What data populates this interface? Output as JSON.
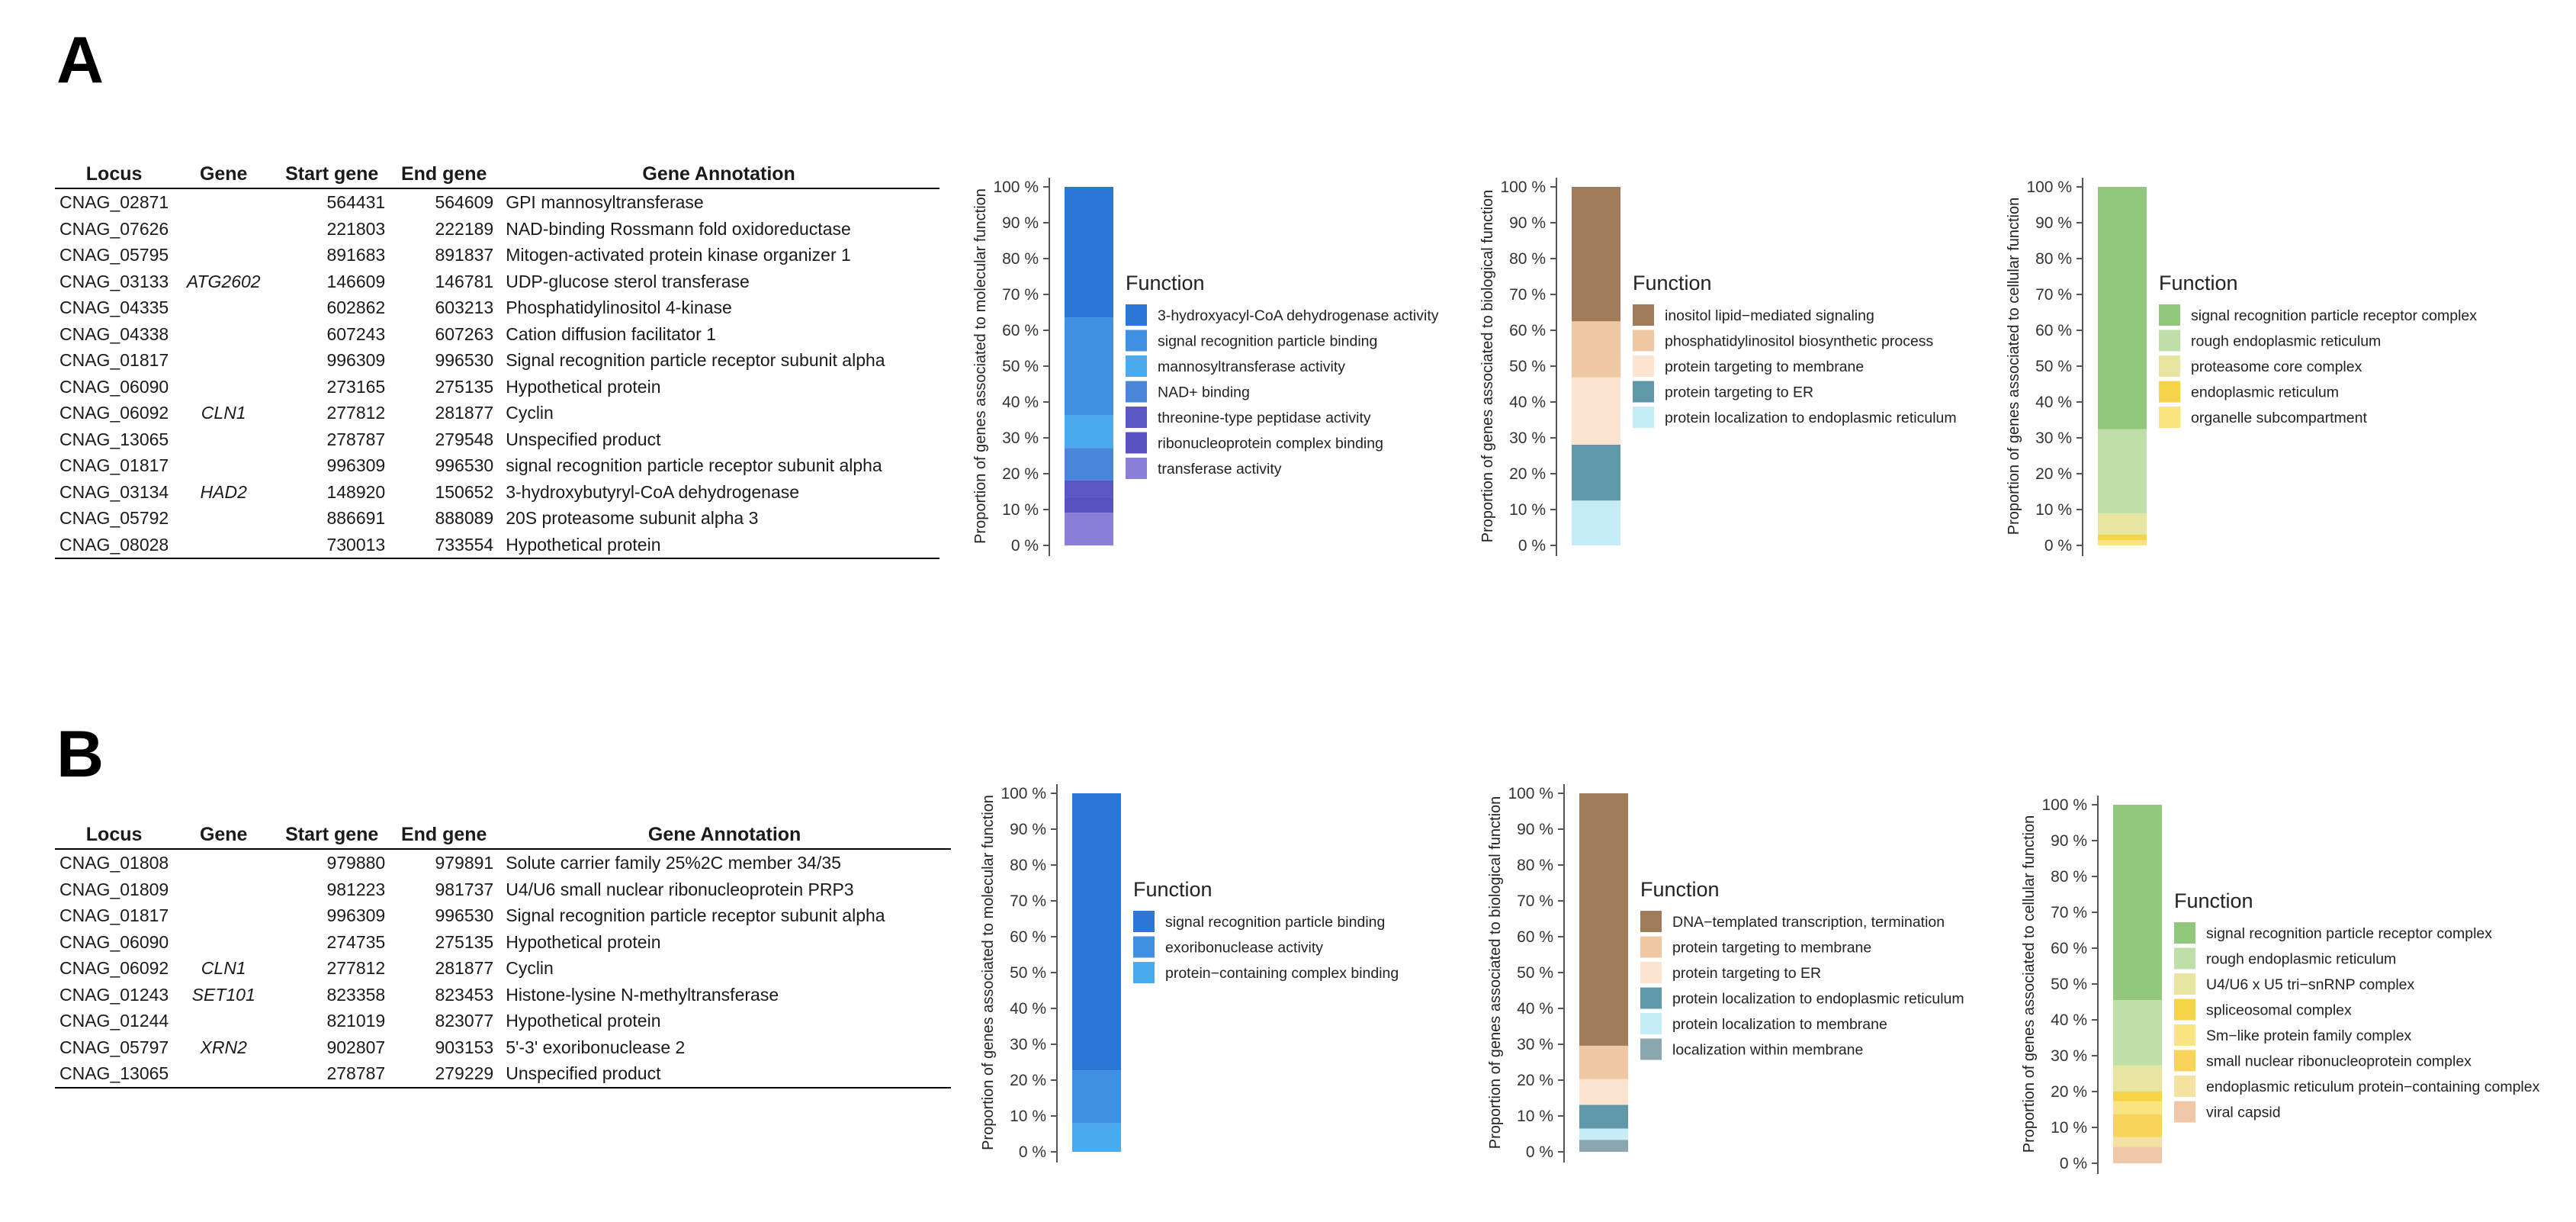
{
  "panels": [
    {
      "label": "A",
      "table": {
        "headers": [
          "Locus",
          "Gene",
          "Start gene",
          "End gene",
          "Gene Annotation"
        ],
        "rows": [
          [
            "CNAG_02871",
            "",
            "564431",
            "564609",
            "GPI mannosyltransferase"
          ],
          [
            "CNAG_07626",
            "",
            "221803",
            "222189",
            "NAD-binding Rossmann fold oxidoreductase"
          ],
          [
            "CNAG_05795",
            "",
            "891683",
            "891837",
            "Mitogen-activated protein kinase organizer 1"
          ],
          [
            "CNAG_03133",
            "ATG2602",
            "146609",
            "146781",
            "UDP-glucose sterol transferase"
          ],
          [
            "CNAG_04335",
            "",
            "602862",
            "603213",
            "Phosphatidylinositol 4-kinase"
          ],
          [
            "CNAG_04338",
            "",
            "607243",
            "607263",
            "Cation diffusion facilitator 1"
          ],
          [
            "CNAG_01817",
            "",
            "996309",
            "996530",
            "Signal recognition particle receptor subunit alpha"
          ],
          [
            "CNAG_06090",
            "",
            "273165",
            "275135",
            "Hypothetical protein"
          ],
          [
            "CNAG_06092",
            "CLN1",
            "277812",
            "281877",
            "Cyclin"
          ],
          [
            "CNAG_13065",
            "",
            "278787",
            "279548",
            "Unspecified product"
          ],
          [
            "CNAG_01817",
            "",
            "996309",
            "996530",
            "signal recognition particle receptor subunit alpha"
          ],
          [
            "CNAG_03134",
            "HAD2",
            "148920",
            "150652",
            "3-hydroxybutyryl-CoA dehydrogenase"
          ],
          [
            "CNAG_05792",
            "",
            "886691",
            "888089",
            "20S proteasome subunit alpha 3"
          ],
          [
            "CNAG_08028",
            "",
            "730013",
            "733554",
            "Hypothetical protein"
          ]
        ]
      }
    },
    {
      "label": "B",
      "table": {
        "headers": [
          "Locus",
          "Gene",
          "Start gene",
          "End gene",
          "Gene Annotation"
        ],
        "rows": [
          [
            "CNAG_01808",
            "",
            "979880",
            "979891",
            "Solute carrier family 25%2C member 34/35"
          ],
          [
            "CNAG_01809",
            "",
            "981223",
            "981737",
            "U4/U6 small nuclear ribonucleoprotein PRP3"
          ],
          [
            "CNAG_01817",
            "",
            "996309",
            "996530",
            "Signal recognition particle receptor subunit alpha"
          ],
          [
            "CNAG_06090",
            "",
            "274735",
            "275135",
            "Hypothetical protein"
          ],
          [
            "CNAG_06092",
            "CLN1",
            "277812",
            "281877",
            "Cyclin"
          ],
          [
            "CNAG_01243",
            "SET101",
            "823358",
            "823453",
            "Histone-lysine N-methyltransferase"
          ],
          [
            "CNAG_01244",
            "",
            "821019",
            "823077",
            "Hypothetical protein"
          ],
          [
            "CNAG_05797",
            "XRN2",
            "902807",
            "903153",
            "5'-3' exoribonuclease 2"
          ],
          [
            "CNAG_13065",
            "",
            "278787",
            "279229",
            "Unspecified product"
          ]
        ]
      }
    }
  ],
  "chart_data": [
    {
      "panel": "A",
      "type": "bar",
      "stacked": true,
      "ylabel": "Proportion of genes associated to molecular function",
      "yticks": [
        "0 %",
        "10 %",
        "20 %",
        "30 %",
        "40 %",
        "50 %",
        "60 %",
        "70 %",
        "80 %",
        "90 %",
        "100 %"
      ],
      "ylim": [
        0,
        100
      ],
      "legend_title": "Function",
      "series": [
        {
          "name": "3-hydroxyacyl-CoA dehydrogenase activity",
          "value": 36.4,
          "color": "#2a77d6"
        },
        {
          "name": "signal recognition particle binding",
          "value": 27.3,
          "color": "#3f8fe2"
        },
        {
          "name": "mannosyltransferase activity",
          "value": 9.1,
          "color": "#4ba9ee"
        },
        {
          "name": "NAD+ binding",
          "value": 9.1,
          "color": "#4a86da"
        },
        {
          "name": "threonine-type peptidase activity",
          "value": 4.5,
          "color": "#5a56c4"
        },
        {
          "name": "ribonucleoprotein complex binding",
          "value": 4.5,
          "color": "#5a52c2"
        },
        {
          "name": "transferase activity",
          "value": 9.1,
          "color": "#8a7fd8"
        }
      ]
    },
    {
      "panel": "A",
      "type": "bar",
      "stacked": true,
      "ylabel": "Proportion of genes associated to biological function",
      "yticks": [
        "0 %",
        "10 %",
        "20 %",
        "30 %",
        "40 %",
        "50 %",
        "60 %",
        "70 %",
        "80 %",
        "90 %",
        "100 %"
      ],
      "ylim": [
        0,
        100
      ],
      "legend_title": "Function",
      "series": [
        {
          "name": "inositol lipid−mediated signaling",
          "value": 37.5,
          "color": "#a07c5b"
        },
        {
          "name": "phosphatidylinositol biosynthetic process",
          "value": 15.6,
          "color": "#efc8a3"
        },
        {
          "name": "protein targeting to membrane",
          "value": 18.8,
          "color": "#fbe3cf"
        },
        {
          "name": "protein targeting to ER",
          "value": 15.6,
          "color": "#5f98a8"
        },
        {
          "name": "protein localization to endoplasmic reticulum",
          "value": 12.5,
          "color": "#c5ecf7"
        }
      ]
    },
    {
      "panel": "A",
      "type": "bar",
      "stacked": true,
      "ylabel": "Proportion of genes associated to cellular function",
      "yticks": [
        "0 %",
        "10 %",
        "20 %",
        "30 %",
        "40 %",
        "50 %",
        "60 %",
        "70 %",
        "80 %",
        "90 %",
        "100 %"
      ],
      "ylim": [
        0,
        100
      ],
      "legend_title": "Function",
      "series": [
        {
          "name": "signal recognition particle receptor complex",
          "value": 67.6,
          "color": "#92c87c"
        },
        {
          "name": "rough endoplasmic reticulum",
          "value": 23.5,
          "color": "#bfdfa8"
        },
        {
          "name": "proteasome core complex",
          "value": 5.9,
          "color": "#e8e5a0"
        },
        {
          "name": "endoplasmic reticulum",
          "value": 1.5,
          "color": "#f5d449"
        },
        {
          "name": "organelle subcompartment",
          "value": 1.5,
          "color": "#f9e480"
        }
      ]
    },
    {
      "panel": "B",
      "type": "bar",
      "stacked": true,
      "ylabel": "Proportion of genes associated to molecular function",
      "yticks": [
        "0 %",
        "10 %",
        "20 %",
        "30 %",
        "40 %",
        "50 %",
        "60 %",
        "70 %",
        "80 %",
        "90 %",
        "100 %"
      ],
      "ylim": [
        0,
        100
      ],
      "legend_title": "Function",
      "series": [
        {
          "name": "signal recognition particle binding",
          "value": 77.3,
          "color": "#2a77d6"
        },
        {
          "name": "exoribonuclease activity",
          "value": 14.7,
          "color": "#3f8fe2"
        },
        {
          "name": "protein−containing complex binding",
          "value": 8.0,
          "color": "#4ba9ee"
        }
      ]
    },
    {
      "panel": "B",
      "type": "bar",
      "stacked": true,
      "ylabel": "Proportion of genes associated to biological function",
      "yticks": [
        "0 %",
        "10 %",
        "20 %",
        "30 %",
        "40 %",
        "50 %",
        "60 %",
        "70 %",
        "80 %",
        "90 %",
        "100 %"
      ],
      "ylim": [
        0,
        100
      ],
      "legend_title": "Function",
      "series": [
        {
          "name": "DNA−templated transcription, termination",
          "value": 70.4,
          "color": "#a07c5b"
        },
        {
          "name": "protein targeting to membrane",
          "value": 9.3,
          "color": "#efc8a3"
        },
        {
          "name": "protein targeting to ER",
          "value": 7.2,
          "color": "#fbe3cf"
        },
        {
          "name": "protein localization to endoplasmic reticulum",
          "value": 6.6,
          "color": "#5f98a8"
        },
        {
          "name": "protein localization to membrane",
          "value": 3.2,
          "color": "#c5ecf7"
        },
        {
          "name": "localization within membrane",
          "value": 3.3,
          "color": "#8aa6ae"
        }
      ]
    },
    {
      "panel": "B",
      "type": "bar",
      "stacked": true,
      "ylabel": "Proportion of genes associated to cellular function",
      "yticks": [
        "0 %",
        "10 %",
        "20 %",
        "30 %",
        "40 %",
        "50 %",
        "60 %",
        "70 %",
        "80 %",
        "90 %",
        "100 %"
      ],
      "ylim": [
        0,
        100
      ],
      "legend_title": "Function",
      "series": [
        {
          "name": "signal recognition particle receptor complex",
          "value": 54.5,
          "color": "#92c87c"
        },
        {
          "name": "rough endoplasmic reticulum",
          "value": 18.2,
          "color": "#bfdfa8"
        },
        {
          "name": "U4/U6 x U5 tri−snRNP complex",
          "value": 7.3,
          "color": "#e8e5a0"
        },
        {
          "name": "spliceosomal complex",
          "value": 2.7,
          "color": "#f5d449"
        },
        {
          "name": "Sm−like protein family complex",
          "value": 3.6,
          "color": "#f9e480"
        },
        {
          "name": "small nuclear ribonucleoprotein complex",
          "value": 6.4,
          "color": "#f8d55a"
        },
        {
          "name": "endoplasmic reticulum protein−containing complex",
          "value": 2.7,
          "color": "#f6e2a0"
        },
        {
          "name": "viral capsid",
          "value": 4.6,
          "color": "#f0c8a8"
        }
      ]
    }
  ]
}
